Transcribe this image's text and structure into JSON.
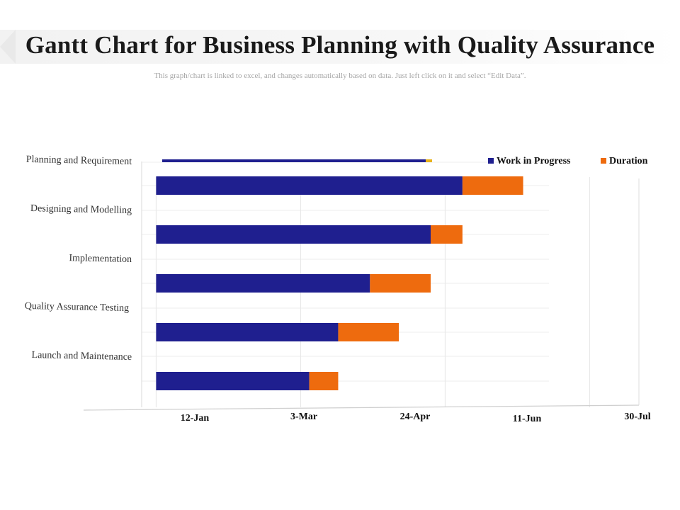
{
  "header": {
    "title": "Gantt Chart for Business Planning with Quality Assurance",
    "subtitle": "This graph/chart is linked to excel, and changes automatically based on data. Just left click on it and select “Edit Data”."
  },
  "chart_data": {
    "type": "bar",
    "orientation": "horizontal-stacked",
    "title": "",
    "xlabel": "",
    "ylabel": "",
    "categories": [
      "Planning and Requirement",
      "Designing and Modelling",
      "Implementation",
      "Quality Assurance Testing",
      "Launch and Maintenance"
    ],
    "series": [
      {
        "name": "Work in Progress",
        "color": "#1f1f8f",
        "values": [
          106,
          95,
          74,
          63,
          53
        ]
      },
      {
        "name": "Duration",
        "color": "#ee6b0e",
        "values": [
          21,
          11,
          21,
          21,
          10
        ]
      }
    ],
    "x_tick_labels": [
      "12-Jan",
      "3-Mar",
      "24-Apr",
      "11-Jun",
      "30-Jul"
    ],
    "x_tick_values": [
      0,
      50,
      100,
      150,
      200
    ],
    "xlim": [
      -5,
      200
    ],
    "legend": "top-right",
    "grid": true
  }
}
